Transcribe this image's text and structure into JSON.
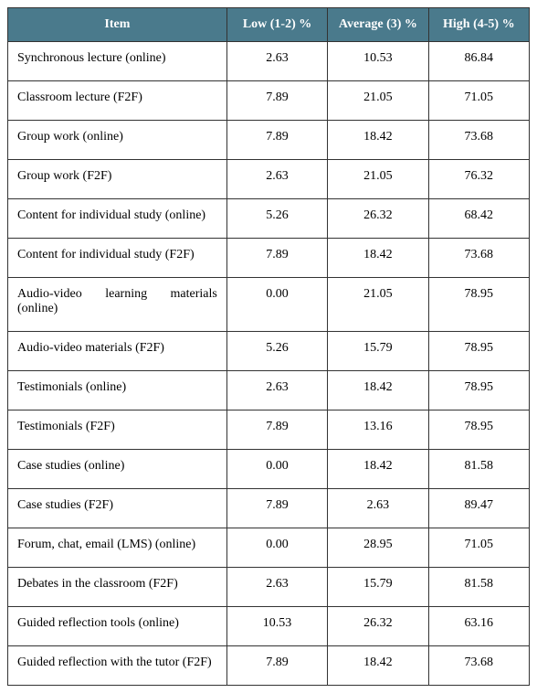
{
  "table": {
    "columns": [
      "Item",
      "Low (1-2) %",
      "Average (3) %",
      "High (4-5) %"
    ],
    "header_bg": "#4a7a8c",
    "header_text_color": "#ffffff",
    "border_color": "#333333",
    "font_family": "Times New Roman",
    "rows": [
      {
        "item": "Synchronous lecture (online)",
        "low": "2.63",
        "avg": "10.53",
        "high": "86.84"
      },
      {
        "item": "Classroom lecture (F2F)",
        "low": "7.89",
        "avg": "21.05",
        "high": "71.05"
      },
      {
        "item": "Group work (online)",
        "low": "7.89",
        "avg": "18.42",
        "high": "73.68"
      },
      {
        "item": "Group work (F2F)",
        "low": "2.63",
        "avg": "21.05",
        "high": "76.32"
      },
      {
        "item": "Content for individual study (online)",
        "low": "5.26",
        "avg": "26.32",
        "high": "68.42"
      },
      {
        "item": "Content for individual study (F2F)",
        "low": "7.89",
        "avg": "18.42",
        "high": "73.68"
      },
      {
        "item": "Audio-video learning materials (online)",
        "low": "0.00",
        "avg": "21.05",
        "high": "78.95"
      },
      {
        "item": "Audio-video materials (F2F)",
        "low": "5.26",
        "avg": "15.79",
        "high": "78.95"
      },
      {
        "item": "Testimonials (online)",
        "low": "2.63",
        "avg": "18.42",
        "high": "78.95"
      },
      {
        "item": "Testimonials (F2F)",
        "low": "7.89",
        "avg": "13.16",
        "high": "78.95"
      },
      {
        "item": "Case studies (online)",
        "low": "0.00",
        "avg": "18.42",
        "high": "81.58"
      },
      {
        "item": "Case studies (F2F)",
        "low": "7.89",
        "avg": "2.63",
        "high": "89.47"
      },
      {
        "item": "Forum, chat, email (LMS) (online)",
        "low": "0.00",
        "avg": "28.95",
        "high": "71.05"
      },
      {
        "item": "Debates in the classroom (F2F)",
        "low": "2.63",
        "avg": "15.79",
        "high": "81.58"
      },
      {
        "item": "Guided reflection tools (online)",
        "low": "10.53",
        "avg": "26.32",
        "high": "63.16"
      },
      {
        "item": "Guided reflection with the tutor (F2F)",
        "low": "7.89",
        "avg": "18.42",
        "high": "73.68"
      }
    ]
  }
}
